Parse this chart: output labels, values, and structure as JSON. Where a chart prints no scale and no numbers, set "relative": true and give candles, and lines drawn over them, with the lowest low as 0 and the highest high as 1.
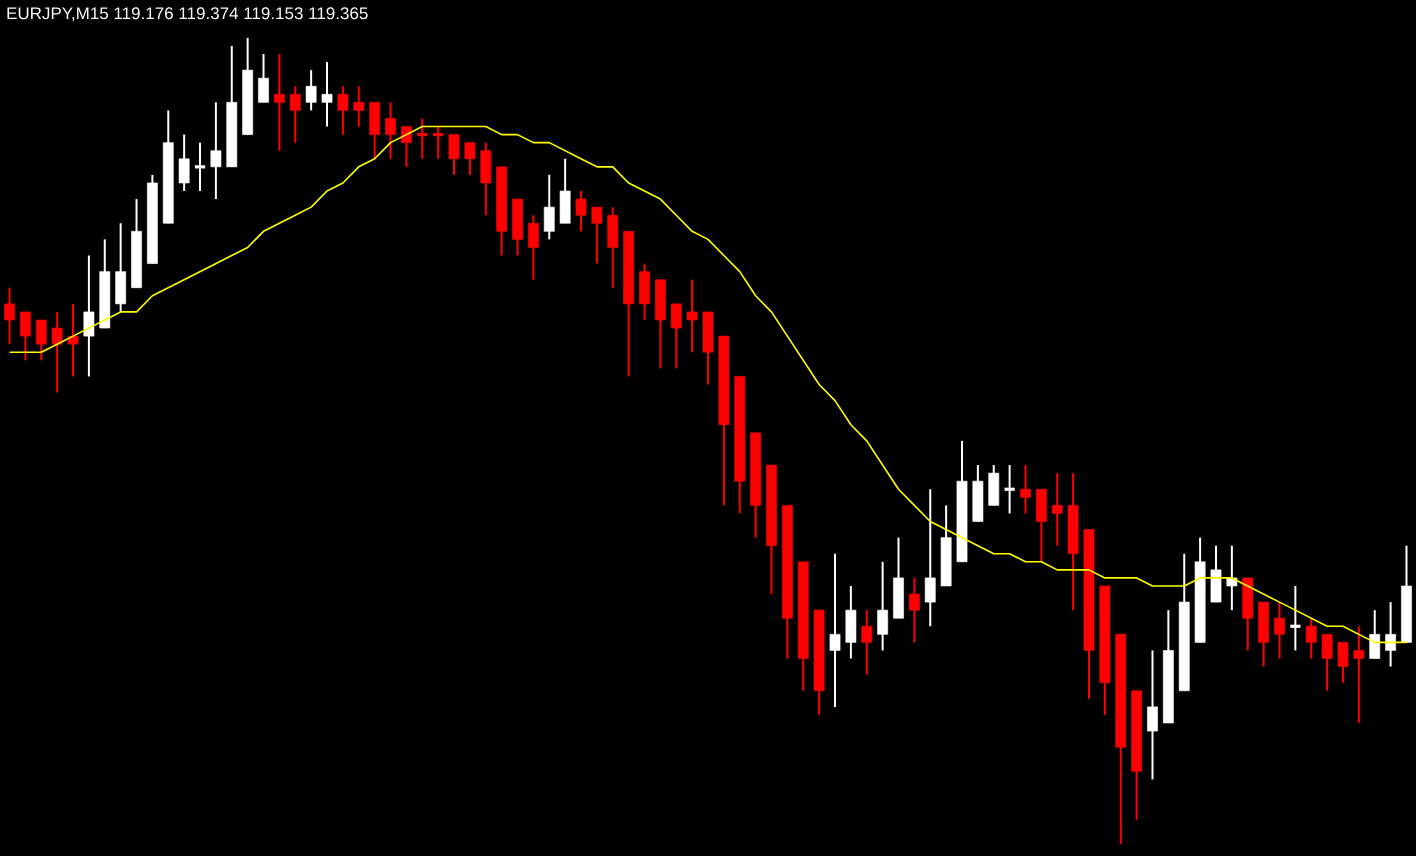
{
  "chart_data": {
    "type": "candlestick",
    "title": "EURJPY,M15  119.176 119.374 119.153 119.365",
    "relative": true,
    "categories": [
      null,
      null,
      null,
      null,
      null,
      null,
      null,
      null,
      null,
      null,
      null,
      null,
      null,
      null,
      null,
      null,
      null,
      null,
      null,
      null,
      null,
      null,
      null,
      null,
      null,
      null,
      null,
      null,
      null,
      null,
      null,
      null,
      null,
      null,
      null,
      null,
      null,
      null,
      null,
      null,
      null,
      null,
      null,
      null,
      null,
      null,
      null,
      null,
      null,
      null,
      null,
      null,
      null,
      null,
      null,
      null,
      null,
      null,
      null,
      null,
      null,
      null,
      null,
      null,
      null,
      null,
      null,
      null,
      null,
      null,
      null,
      null,
      null,
      null,
      null,
      null,
      null,
      null,
      null,
      null,
      null,
      null,
      null,
      null,
      null,
      null,
      null,
      null,
      null
    ],
    "ohlc": [
      [
        0.67,
        0.69,
        0.62,
        0.65
      ],
      [
        0.66,
        0.66,
        0.6,
        0.63
      ],
      [
        0.65,
        0.65,
        0.6,
        0.62
      ],
      [
        0.64,
        0.66,
        0.56,
        0.62
      ],
      [
        0.63,
        0.67,
        0.58,
        0.62
      ],
      [
        0.63,
        0.73,
        0.58,
        0.66
      ],
      [
        0.64,
        0.75,
        0.64,
        0.71
      ],
      [
        0.67,
        0.77,
        0.66,
        0.71
      ],
      [
        0.69,
        0.8,
        0.69,
        0.76
      ],
      [
        0.72,
        0.83,
        0.72,
        0.82
      ],
      [
        0.77,
        0.91,
        0.77,
        0.87
      ],
      [
        0.82,
        0.88,
        0.81,
        0.85
      ],
      [
        0.84,
        0.87,
        0.81,
        0.84
      ],
      [
        0.84,
        0.92,
        0.8,
        0.86
      ],
      [
        0.84,
        0.99,
        0.84,
        0.92
      ],
      [
        0.88,
        1,
        0.88,
        0.96
      ],
      [
        0.92,
        0.98,
        0.92,
        0.95
      ],
      [
        0.93,
        0.98,
        0.86,
        0.92
      ],
      [
        0.93,
        0.94,
        0.87,
        0.91
      ],
      [
        0.92,
        0.96,
        0.91,
        0.94
      ],
      [
        0.92,
        0.97,
        0.89,
        0.93
      ],
      [
        0.93,
        0.94,
        0.88,
        0.91
      ],
      [
        0.92,
        0.94,
        0.89,
        0.91
      ],
      [
        0.92,
        0.92,
        0.85,
        0.88
      ],
      [
        0.9,
        0.92,
        0.85,
        0.88
      ],
      [
        0.89,
        0.89,
        0.84,
        0.87
      ],
      [
        0.88,
        0.9,
        0.85,
        0.88
      ],
      [
        0.88,
        0.89,
        0.85,
        0.88
      ],
      [
        0.88,
        0.88,
        0.83,
        0.85
      ],
      [
        0.87,
        0.87,
        0.83,
        0.85
      ],
      [
        0.86,
        0.87,
        0.78,
        0.82
      ],
      [
        0.84,
        0.84,
        0.73,
        0.76
      ],
      [
        0.8,
        0.8,
        0.73,
        0.75
      ],
      [
        0.77,
        0.78,
        0.7,
        0.74
      ],
      [
        0.76,
        0.83,
        0.75,
        0.79
      ],
      [
        0.77,
        0.85,
        0.77,
        0.81
      ],
      [
        0.8,
        0.81,
        0.76,
        0.78
      ],
      [
        0.79,
        0.79,
        0.72,
        0.77
      ],
      [
        0.78,
        0.79,
        0.69,
        0.74
      ],
      [
        0.76,
        0.76,
        0.58,
        0.67
      ],
      [
        0.71,
        0.72,
        0.65,
        0.67
      ],
      [
        0.7,
        0.7,
        0.59,
        0.65
      ],
      [
        0.67,
        0.67,
        0.59,
        0.64
      ],
      [
        0.66,
        0.7,
        0.61,
        0.65
      ],
      [
        0.66,
        0.66,
        0.57,
        0.61
      ],
      [
        0.63,
        0.63,
        0.42,
        0.52
      ],
      [
        0.58,
        0.58,
        0.41,
        0.45
      ],
      [
        0.51,
        0.51,
        0.38,
        0.42
      ],
      [
        0.47,
        0.47,
        0.31,
        0.37
      ],
      [
        0.42,
        0.42,
        0.23,
        0.28
      ],
      [
        0.35,
        0.35,
        0.19,
        0.23
      ],
      [
        0.29,
        0.29,
        0.16,
        0.19
      ],
      [
        0.24,
        0.36,
        0.17,
        0.26
      ],
      [
        0.25,
        0.32,
        0.23,
        0.29
      ],
      [
        0.27,
        0.29,
        0.21,
        0.25
      ],
      [
        0.26,
        0.35,
        0.24,
        0.29
      ],
      [
        0.28,
        0.38,
        0.28,
        0.33
      ],
      [
        0.31,
        0.33,
        0.25,
        0.29
      ],
      [
        0.3,
        0.44,
        0.27,
        0.33
      ],
      [
        0.32,
        0.42,
        0.32,
        0.38
      ],
      [
        0.35,
        0.5,
        0.35,
        0.45
      ],
      [
        0.4,
        0.47,
        0.4,
        0.45
      ],
      [
        0.42,
        0.47,
        0.42,
        0.46
      ],
      [
        0.44,
        0.47,
        0.41,
        0.44
      ],
      [
        0.44,
        0.47,
        0.41,
        0.43
      ],
      [
        0.44,
        0.44,
        0.35,
        0.4
      ],
      [
        0.42,
        0.46,
        0.37,
        0.41
      ],
      [
        0.42,
        0.46,
        0.29,
        0.36
      ],
      [
        0.39,
        0.39,
        0.18,
        0.24
      ],
      [
        0.32,
        0.32,
        0.16,
        0.2
      ],
      [
        0.26,
        0.26,
        0,
        0.12
      ],
      [
        0.19,
        0.19,
        0.03,
        0.09
      ],
      [
        0.14,
        0.24,
        0.08,
        0.17
      ],
      [
        0.15,
        0.29,
        0.15,
        0.24
      ],
      [
        0.19,
        0.36,
        0.19,
        0.3
      ],
      [
        0.25,
        0.38,
        0.25,
        0.35
      ],
      [
        0.3,
        0.37,
        0.3,
        0.34
      ],
      [
        0.32,
        0.37,
        0.29,
        0.33
      ],
      [
        0.33,
        0.33,
        0.24,
        0.28
      ],
      [
        0.3,
        0.3,
        0.22,
        0.25
      ],
      [
        0.28,
        0.3,
        0.23,
        0.26
      ],
      [
        0.27,
        0.32,
        0.24,
        0.27
      ],
      [
        0.27,
        0.28,
        0.23,
        0.25
      ],
      [
        0.26,
        0.26,
        0.19,
        0.23
      ],
      [
        0.25,
        0.25,
        0.2,
        0.22
      ],
      [
        0.24,
        0.27,
        0.15,
        0.23
      ],
      [
        0.23,
        0.29,
        0.23,
        0.26
      ],
      [
        0.24,
        0.3,
        0.22,
        0.26
      ],
      [
        0.25,
        0.37,
        0.25,
        0.32
      ]
    ],
    "colors": [
      "#ff0000",
      "#ff0000",
      "#ff0000",
      "#ff0000",
      "#ff0000",
      "#ffffff",
      "#ffffff",
      "#ffffff",
      "#ffffff",
      "#ffffff",
      "#ffffff",
      "#ffffff",
      "#ffffff",
      "#ffffff",
      "#ffffff",
      "#ffffff",
      "#ffffff",
      "#ff0000",
      "#ff0000",
      "#ffffff",
      "#ffffff",
      "#ff0000",
      "#ff0000",
      "#ff0000",
      "#ff0000",
      "#ff0000",
      "#ff0000",
      "#ff0000",
      "#ff0000",
      "#ff0000",
      "#ff0000",
      "#ff0000",
      "#ff0000",
      "#ff0000",
      "#ffffff",
      "#ffffff",
      "#ff0000",
      "#ff0000",
      "#ff0000",
      "#ff0000",
      "#ff0000",
      "#ff0000",
      "#ff0000",
      "#ff0000",
      "#ff0000",
      "#ff0000",
      "#ff0000",
      "#ff0000",
      "#ff0000",
      "#ff0000",
      "#ff0000",
      "#ff0000",
      "#ffffff",
      "#ffffff",
      "#ff0000",
      "#ffffff",
      "#ffffff",
      "#ff0000",
      "#ffffff",
      "#ffffff",
      "#ffffff",
      "#ffffff",
      "#ffffff",
      "#ffffff",
      "#ff0000",
      "#ff0000",
      "#ff0000",
      "#ff0000",
      "#ff0000",
      "#ff0000",
      "#ff0000",
      "#ff0000",
      "#ffffff",
      "#ffffff",
      "#ffffff",
      "#ffffff",
      "#ffffff",
      "#ffffff",
      "#ff0000",
      "#ff0000",
      "#ff0000",
      "#ffffff",
      "#ff0000",
      "#ff0000",
      "#ff0000",
      "#ff0000",
      "#ffffff",
      "#ffffff",
      "#ffffff"
    ],
    "series": [
      {
        "type": "line",
        "color": "#ffff00",
        "values": [
          0.61,
          0.61,
          0.61,
          0.62,
          0.63,
          0.64,
          0.65,
          0.66,
          0.66,
          0.68,
          0.69,
          0.7,
          0.71,
          0.72,
          0.73,
          0.74,
          0.76,
          0.77,
          0.78,
          0.79,
          0.81,
          0.82,
          0.84,
          0.85,
          0.87,
          0.88,
          0.89,
          0.89,
          0.89,
          0.89,
          0.89,
          0.88,
          0.88,
          0.87,
          0.87,
          0.86,
          0.85,
          0.84,
          0.84,
          0.82,
          0.81,
          0.8,
          0.78,
          0.76,
          0.75,
          0.73,
          0.71,
          0.68,
          0.66,
          0.63,
          0.6,
          0.57,
          0.55,
          0.52,
          0.5,
          0.47,
          0.44,
          0.42,
          0.4,
          0.39,
          0.38,
          0.37,
          0.36,
          0.36,
          0.35,
          0.35,
          0.34,
          0.34,
          0.34,
          0.33,
          0.33,
          0.33,
          0.32,
          0.32,
          0.32,
          0.33,
          0.33,
          0.33,
          0.32,
          0.31,
          0.3,
          0.29,
          0.28,
          0.27,
          0.27,
          0.26,
          0.25,
          0.25,
          0.25
        ]
      }
    ]
  }
}
